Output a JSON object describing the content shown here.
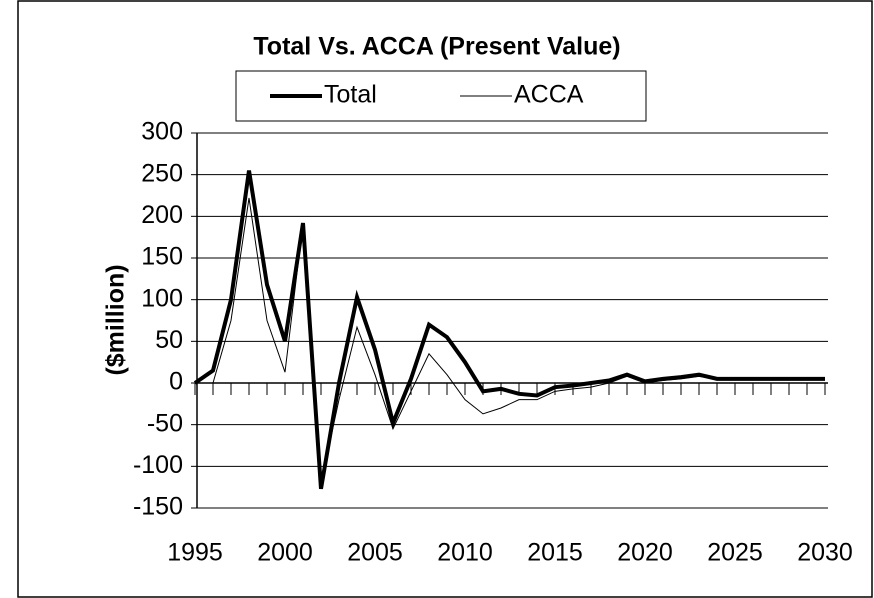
{
  "chart_data": {
    "type": "line",
    "title": "Total Vs. ACCA (Present Value)",
    "y_label": "($million)",
    "x": [
      1995,
      1996,
      1997,
      1998,
      1999,
      2000,
      2001,
      2002,
      2003,
      2004,
      2005,
      2006,
      2007,
      2008,
      2009,
      2010,
      2011,
      2012,
      2013,
      2014,
      2015,
      2016,
      2017,
      2018,
      2019,
      2020,
      2021,
      2022,
      2023,
      2024,
      2025,
      2026,
      2027,
      2028,
      2029,
      2030
    ],
    "series": [
      {
        "name": "Total",
        "color": "#000000",
        "values": [
          0,
          15,
          100,
          255,
          118,
          50,
          192,
          -127,
          0,
          103,
          40,
          -48,
          5,
          70,
          55,
          25,
          -10,
          -7,
          -13,
          -15,
          -5,
          -3,
          0,
          3,
          10,
          2,
          5,
          7,
          10,
          5,
          5,
          5,
          5,
          5,
          5,
          5
        ]
      },
      {
        "name": "ACCA",
        "color": "#000000",
        "values": [
          null,
          0,
          75,
          222,
          75,
          13,
          192,
          -120,
          -20,
          67,
          10,
          -55,
          -10,
          35,
          10,
          -20,
          -37,
          -30,
          -20,
          -20,
          -10,
          -7,
          -5,
          0,
          8,
          0,
          3,
          5,
          8,
          5,
          5,
          5,
          5,
          5,
          5,
          5
        ]
      }
    ],
    "xlim": [
      1995,
      2030
    ],
    "xticks": [
      1995,
      2000,
      2005,
      2010,
      2015,
      2020,
      2025,
      2030
    ],
    "ylim": [
      -150,
      300
    ],
    "yticks": [
      -150,
      -100,
      -50,
      0,
      50,
      100,
      150,
      200,
      250,
      300
    ],
    "grid": true,
    "legend": "top"
  }
}
